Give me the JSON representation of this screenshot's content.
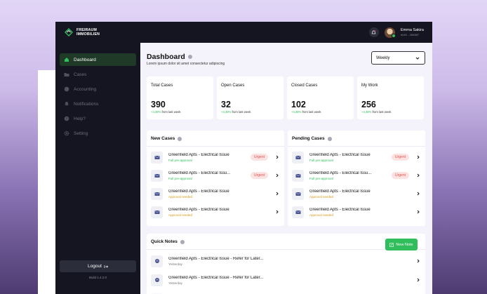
{
  "brand": {
    "line1": "FREIRAUM",
    "line2": "IMMOBILIEN"
  },
  "sidebar": {
    "items": [
      {
        "label": "Dashboard",
        "icon": "home-icon"
      },
      {
        "label": "Cases",
        "icon": "folder-icon"
      },
      {
        "label": "Accounting",
        "icon": "coin-icon"
      },
      {
        "label": "Notifications",
        "icon": "bell-icon"
      },
      {
        "label": "Help?",
        "icon": "help-icon"
      },
      {
        "label": "Setting",
        "icon": "gear-icon"
      }
    ],
    "logout_label": "Logout",
    "build": "Build 1.4.2.0"
  },
  "user": {
    "name": "Emma Sakira",
    "id": "#UID - 284587"
  },
  "header": {
    "title": "Dashboard",
    "subtitle": "Lorem ipsum dolor sit amet consectetur adipiscing",
    "period": "Weekly"
  },
  "stats": [
    {
      "label": "Total Cases",
      "value": "390",
      "pct": "+4,38%",
      "suffix": "from last week"
    },
    {
      "label": "Open Cases",
      "value": "32",
      "pct": "+4,38%",
      "suffix": "from last week"
    },
    {
      "label": "Closed Cases",
      "value": "102",
      "pct": "+4,38%",
      "suffix": "from last week"
    },
    {
      "label": "My Work",
      "value": "256",
      "pct": "+4,38%",
      "suffix": "from last week"
    }
  ],
  "new_cases": {
    "title": "New Cases",
    "rows": [
      {
        "title": "Greenfield Apts - Electrical Issue",
        "status": "Full pre-approval",
        "badge": "Urgent"
      },
      {
        "title": "Greenfield Apts - Electrical Issu...",
        "status": "Full pre-approval",
        "badge": "Urgent"
      },
      {
        "title": "Greenfield Apts - Electrical Issue",
        "status": "Approval needed",
        "badge": ""
      },
      {
        "title": "Greenfield Apts - Electrical Issue",
        "status": "Approval needed",
        "badge": ""
      }
    ]
  },
  "pending_cases": {
    "title": "Pending Cases",
    "rows": [
      {
        "title": "Greenfield Apts - Electrical Issue",
        "status": "Full pre-approval",
        "badge": "Urgent"
      },
      {
        "title": "Greenfield Apts - Electrical Issu...",
        "status": "Full pre-approval",
        "badge": "Urgent"
      },
      {
        "title": "Greenfield Apts - Electrical Issue",
        "status": "Approval needed",
        "badge": ""
      },
      {
        "title": "Greenfield Apts - Electrical Issue",
        "status": "Approval needed",
        "badge": ""
      }
    ]
  },
  "quick_notes": {
    "title": "Quick Notes",
    "new_label": "New Note",
    "rows": [
      {
        "title": "Greenfield Apts - Electrical Issue - Refer for Later...",
        "date": "Yesterday"
      },
      {
        "title": "Greenfield Apts - Electrical Issue - Refer for Later...",
        "date": "Yesterday"
      }
    ]
  },
  "colors": {
    "sidebar": "#141521",
    "accent": "#2fbe5b",
    "urgent": "#d9534f",
    "amber": "#d69a1d"
  }
}
